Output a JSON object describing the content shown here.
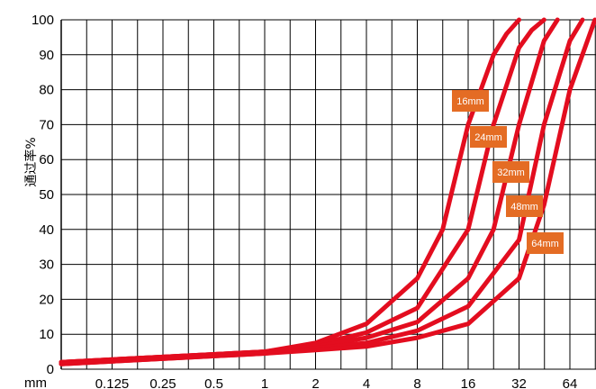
{
  "chart_data": {
    "type": "line",
    "ylabel": "通过率%",
    "x_unit_label": "mm",
    "x_scale": "log2",
    "xlim": [
      0.0625,
      90
    ],
    "ylim": [
      0,
      100
    ],
    "yticks": [
      0,
      10,
      20,
      30,
      40,
      50,
      60,
      70,
      80,
      90,
      100
    ],
    "xticks": [
      "0.125",
      "0.25",
      "0.5",
      "1",
      "2",
      "4",
      "8",
      "16",
      "32",
      "64"
    ],
    "grid": true,
    "series": [
      {
        "name": "16mm",
        "points": [
          [
            0.0625,
            2
          ],
          [
            1,
            5
          ],
          [
            2,
            7.5
          ],
          [
            4,
            13
          ],
          [
            8,
            26
          ],
          [
            11.3,
            40
          ],
          [
            16,
            70
          ],
          [
            22.6,
            90
          ],
          [
            27,
            96
          ],
          [
            32,
            100
          ]
        ]
      },
      {
        "name": "24mm",
        "points": [
          [
            0.0625,
            2
          ],
          [
            1,
            5
          ],
          [
            2,
            7
          ],
          [
            4,
            10.5
          ],
          [
            8,
            17.5
          ],
          [
            16,
            40
          ],
          [
            22.6,
            70
          ],
          [
            32,
            92
          ],
          [
            38,
            97
          ],
          [
            45,
            100
          ]
        ]
      },
      {
        "name": "32mm",
        "points": [
          [
            0.0625,
            2
          ],
          [
            1,
            5
          ],
          [
            2,
            6.5
          ],
          [
            4,
            9
          ],
          [
            8,
            13.5
          ],
          [
            16,
            26
          ],
          [
            22.6,
            40
          ],
          [
            32,
            70
          ],
          [
            45,
            94
          ],
          [
            54,
            100
          ]
        ]
      },
      {
        "name": "48mm",
        "points": [
          [
            0.0625,
            1.5
          ],
          [
            1,
            4.5
          ],
          [
            2,
            6
          ],
          [
            4,
            7.5
          ],
          [
            8,
            11
          ],
          [
            16,
            18
          ],
          [
            32,
            37
          ],
          [
            45,
            70
          ],
          [
            64,
            94
          ],
          [
            76,
            100
          ]
        ]
      },
      {
        "name": "64mm",
        "points": [
          [
            0.0625,
            1.5
          ],
          [
            1,
            4.5
          ],
          [
            2,
            5.5
          ],
          [
            4,
            6.5
          ],
          [
            8,
            9
          ],
          [
            16,
            13
          ],
          [
            32,
            26
          ],
          [
            45,
            47
          ],
          [
            64,
            80
          ],
          [
            90,
            100
          ]
        ]
      }
    ],
    "colors": {
      "line": "#e30d1f",
      "tag_fill": "#e46c24",
      "grid": "#000000"
    }
  }
}
